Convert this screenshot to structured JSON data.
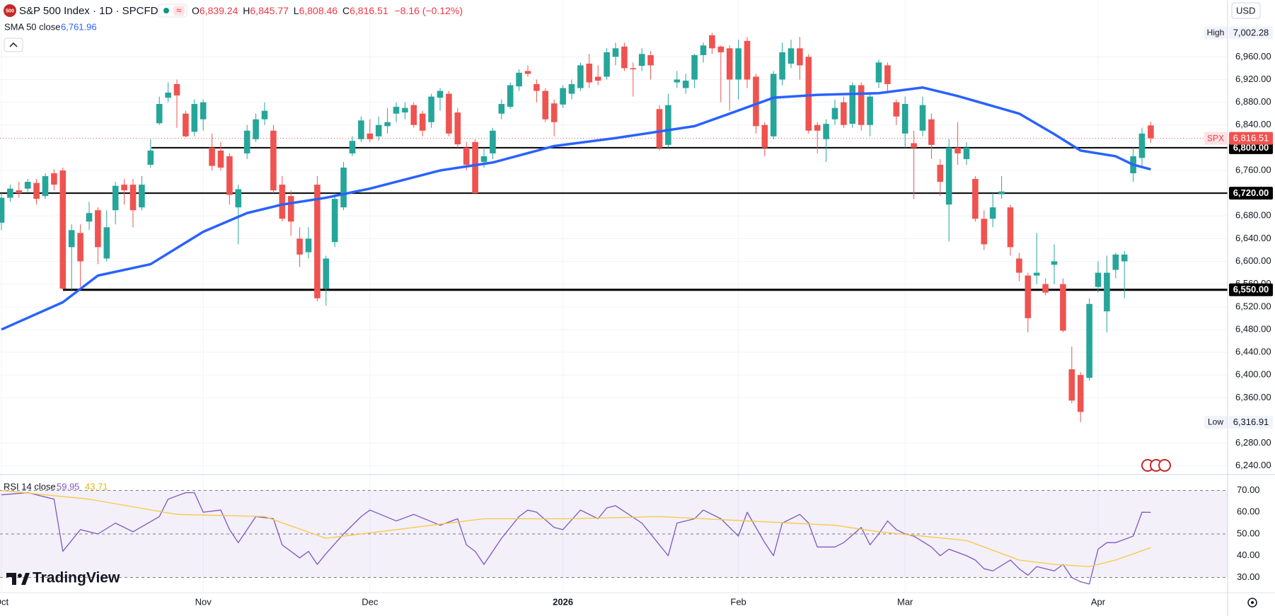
{
  "header": {
    "symbol_badge": "500",
    "title": "S&P 500 Index · 1D · SPCFD",
    "badge": "≈",
    "ohlc": [
      {
        "key": "O",
        "value": "6,839.24"
      },
      {
        "key": "H",
        "value": "6,845.77"
      },
      {
        "key": "L",
        "value": "6,808.46"
      },
      {
        "key": "C",
        "value": "6,816.51"
      }
    ],
    "change": "−8.16 (−0.12%)"
  },
  "currency": "USD",
  "branding": "TradingView",
  "chart_data": [
    {
      "type": "candlestick",
      "categories": [
        "Oct",
        null,
        null,
        null,
        null,
        null,
        null,
        null,
        null,
        null,
        null,
        null,
        null,
        null,
        null,
        null,
        null,
        null,
        null,
        null,
        null,
        null,
        null,
        "Nov",
        null,
        null,
        null,
        null,
        null,
        null,
        null,
        null,
        null,
        null,
        null,
        null,
        null,
        null,
        null,
        null,
        null,
        null,
        "Dec",
        null,
        null,
        null,
        null,
        null,
        null,
        null,
        null,
        null,
        null,
        null,
        null,
        null,
        null,
        null,
        null,
        null,
        null,
        null,
        null,
        null,
        "2026",
        null,
        null,
        null,
        null,
        null,
        null,
        null,
        null,
        null,
        null,
        null,
        null,
        null,
        null,
        null,
        null,
        null,
        null,
        null,
        "Feb",
        null,
        null,
        null,
        null,
        null,
        null,
        null,
        null,
        null,
        null,
        null,
        null,
        null,
        null,
        null,
        null,
        null,
        null,
        "Mar",
        null,
        null,
        null,
        null,
        null,
        null,
        null,
        null,
        null,
        null,
        null,
        null,
        null,
        null,
        null,
        null,
        null,
        null,
        null,
        null,
        null,
        "Apr",
        null,
        null,
        null,
        null,
        null,
        null
      ],
      "open": [
        6668,
        6712,
        6725,
        6728,
        6738,
        6715,
        6755,
        6760,
        6625,
        6650,
        6670,
        6690,
        6605,
        6690,
        6735,
        6735,
        6695,
        6770,
        6843,
        6888,
        6912,
        6860,
        6828,
        6850,
        6800,
        6795,
        6785,
        6695,
        6790,
        6815,
        6850,
        6830,
        6735,
        6715,
        6640,
        6616,
        6735,
        6552,
        6634,
        6695,
        6790,
        6815,
        6825,
        6820,
        6838,
        6860,
        6862,
        6875,
        6860,
        6845,
        6888,
        6895,
        6862,
        6800,
        6810,
        6775,
        6790,
        6860,
        6872,
        6908,
        6935,
        6912,
        6900,
        6878,
        6876,
        6895,
        6905,
        6948,
        6925,
        6925,
        6960,
        6978,
        6940,
        6944,
        6963,
        6868,
        6805,
        6915,
        6905,
        6920,
        6963,
        6998,
        6978,
        6975,
        6920,
        6988,
        6925,
        6840,
        6820,
        6920,
        6948,
        6975,
        6960,
        6840,
        6815,
        6850,
        6880,
        6842,
        6910,
        6840,
        6915,
        6945,
        6880,
        6825,
        6808,
        6830,
        6850,
        6770,
        6700,
        6800,
        6780,
        6745,
        6675,
        6675,
        6718,
        6695,
        6605,
        6575,
        6575,
        6560,
        6594,
        6560,
        6410,
        6400,
        6395,
        6555,
        6512,
        6585,
        6600,
        6755,
        6782,
        6839.24
      ],
      "high": [
        6720,
        6735,
        6740,
        6745,
        6745,
        6755,
        6762,
        6765,
        6665,
        6665,
        6705,
        6695,
        6690,
        6740,
        6745,
        6745,
        6750,
        6815,
        6890,
        6915,
        6920,
        6865,
        6885,
        6885,
        6825,
        6810,
        6790,
        6735,
        6840,
        6860,
        6880,
        6840,
        6750,
        6725,
        6660,
        6660,
        6750,
        6610,
        6720,
        6775,
        6820,
        6855,
        6850,
        6855,
        6870,
        6880,
        6880,
        6880,
        6865,
        6895,
        6905,
        6900,
        6870,
        6810,
        6815,
        6800,
        6835,
        6885,
        6915,
        6938,
        6945,
        6920,
        6905,
        6885,
        6910,
        6920,
        6950,
        6965,
        6945,
        6975,
        6985,
        6985,
        6950,
        6975,
        6970,
        6875,
        6895,
        6935,
        6930,
        6965,
        6985,
        7002.28,
        6980,
        6980,
        6990,
        6995,
        6930,
        6845,
        6935,
        6985,
        6990,
        6995,
        6965,
        6845,
        6850,
        6885,
        6890,
        6915,
        6915,
        6895,
        6955,
        6950,
        6885,
        6890,
        6830,
        6890,
        6860,
        6780,
        6815,
        6845,
        6810,
        6750,
        6690,
        6720,
        6750,
        6700,
        6615,
        6580,
        6650,
        6570,
        6630,
        6570,
        6450,
        6405,
        6535,
        6600,
        6610,
        6615,
        6618,
        6800,
        6835,
        6845.77
      ],
      "low": [
        6655,
        6705,
        6712,
        6722,
        6700,
        6710,
        6725,
        6550,
        6550,
        6555,
        6655,
        6595,
        6600,
        6665,
        6700,
        6660,
        6690,
        6765,
        6840,
        6880,
        6835,
        6818,
        6820,
        6830,
        6760,
        6760,
        6700,
        6630,
        6780,
        6810,
        6840,
        6720,
        6670,
        6645,
        6590,
        6605,
        6530,
        6522,
        6625,
        6690,
        6785,
        6810,
        6810,
        6812,
        6825,
        6845,
        6850,
        6835,
        6820,
        6835,
        6865,
        6820,
        6800,
        6760,
        6718,
        6765,
        6780,
        6850,
        6868,
        6900,
        6925,
        6880,
        6845,
        6820,
        6870,
        6885,
        6900,
        6905,
        6910,
        6920,
        6945,
        6935,
        6890,
        6935,
        6920,
        6795,
        6800,
        6905,
        6895,
        6905,
        6950,
        6965,
        6880,
        6865,
        6885,
        6905,
        6825,
        6785,
        6815,
        6910,
        6940,
        6920,
        6825,
        6790,
        6775,
        6840,
        6835,
        6835,
        6830,
        6820,
        6905,
        6900,
        6840,
        6800,
        6710,
        6820,
        6780,
        6715,
        6635,
        6770,
        6770,
        6670,
        6620,
        6660,
        6710,
        6610,
        6565,
        6475,
        6560,
        6540,
        6560,
        6475,
        6350,
        6316.91,
        6390,
        6545,
        6475,
        6570,
        6535,
        6740,
        6765,
        6808.46
      ],
      "close": [
        6712,
        6728,
        6720,
        6740,
        6710,
        6750,
        6735,
        6552,
        6655,
        6600,
        6685,
        6625,
        6660,
        6733,
        6725,
        6690,
        6735,
        6795,
        6877,
        6897,
        6892,
        6820,
        6877,
        6880,
        6768,
        6765,
        6717,
        6727,
        6830,
        6850,
        6865,
        6725,
        6675,
        6670,
        6612,
        6640,
        6535,
        6605,
        6710,
        6765,
        6812,
        6848,
        6815,
        6840,
        6845,
        6872,
        6870,
        6840,
        6830,
        6890,
        6900,
        6825,
        6806,
        6770,
        6720,
        6785,
        6830,
        6877,
        6910,
        6932,
        6930,
        6900,
        6850,
        6845,
        6905,
        6912,
        6945,
        6915,
        6918,
        6968,
        6975,
        6940,
        6938,
        6965,
        6945,
        6800,
        6875,
        6920,
        6918,
        6963,
        6980,
        6975,
        6968,
        6920,
        6975,
        6920,
        6838,
        6800,
        6930,
        6968,
        6975,
        6945,
        6830,
        6830,
        6842,
        6870,
        6840,
        6910,
        6840,
        6890,
        6950,
        6912,
        6855,
        6877,
        6800,
        6875,
        6805,
        6740,
        6800,
        6790,
        6800,
        6675,
        6630,
        6695,
        6723,
        6625,
        6580,
        6500,
        6580,
        6545,
        6600,
        6478,
        6355,
        6335,
        6525,
        6580,
        6580,
        6612,
        6612,
        6785,
        6825,
        6816.51
      ],
      "up_color": "#26a69a",
      "down_color": "#ef5350",
      "ylim": [
        6226,
        7060
      ],
      "yticks": [
        {
          "value": 6960,
          "label": "6,960.00"
        },
        {
          "value": 6920,
          "label": "6,920.00"
        },
        {
          "value": 6880,
          "label": "6,880.00"
        },
        {
          "value": 6840,
          "label": "6,840.00"
        },
        {
          "value": 6760,
          "label": "6,760.00"
        },
        {
          "value": 6680,
          "label": "6,680.00"
        },
        {
          "value": 6640,
          "label": "6,640.00"
        },
        {
          "value": 6600,
          "label": "6,600.00"
        },
        {
          "value": 6560,
          "label": "6,560.00"
        },
        {
          "value": 6520,
          "label": "6,520.00"
        },
        {
          "value": 6480,
          "label": "6,480.00"
        },
        {
          "value": 6440,
          "label": "6,440.00"
        },
        {
          "value": 6400,
          "label": "6,400.00"
        },
        {
          "value": 6360,
          "label": "6,360.00"
        },
        {
          "value": 6280,
          "label": "6,280.00"
        },
        {
          "value": 6240,
          "label": "6,240.00"
        }
      ],
      "grid": true,
      "overlays": [
        {
          "name": "SMA 50 close",
          "value_label": "6,761.96",
          "color": "#2962ff",
          "x": [
            0,
            7,
            11,
            17,
            23,
            28,
            32,
            37,
            42,
            50,
            56,
            63,
            70,
            79,
            83,
            88,
            93,
            100,
            105,
            109,
            116,
            120,
            123,
            127,
            129,
            131
          ],
          "values": [
            6480,
            6528,
            6575,
            6595,
            6652,
            6685,
            6700,
            6712,
            6728,
            6760,
            6774,
            6803,
            6817,
            6838,
            6860,
            6888,
            6893,
            6896,
            6906,
            6891,
            6860,
            6824,
            6795,
            6785,
            6770,
            6761.96
          ]
        }
      ],
      "levels": [
        {
          "value": 6800,
          "label": "6,800.00"
        },
        {
          "value": 6720,
          "label": "6,720.00"
        },
        {
          "value": 6550,
          "label": "6,550.00"
        }
      ],
      "high_marker": {
        "label": "High",
        "value": 7002.28,
        "value_label": "7,002.28"
      },
      "low_marker": {
        "label": "Low",
        "value": 6316.91,
        "value_label": "6,316.91"
      },
      "last_price": {
        "symbol": "SPX",
        "value": 6816.51,
        "value_label": "6,816.51",
        "color": "#ef5350"
      }
    },
    {
      "type": "line",
      "title": "RSI 14 close",
      "series": [
        {
          "color": "#7e57c2",
          "value_label": "59.95",
          "x": [
            0,
            3,
            6,
            7,
            9,
            11,
            13,
            15,
            18,
            19,
            21,
            22,
            23,
            25,
            26,
            27,
            29,
            31,
            32,
            34,
            35,
            36,
            37,
            39,
            41,
            42,
            45,
            47,
            50,
            52,
            53,
            54,
            55,
            57,
            59,
            60,
            61,
            63,
            64,
            66,
            68,
            69,
            70,
            73,
            76,
            77,
            79,
            80,
            82,
            84,
            85,
            87,
            88,
            89,
            91,
            92,
            93,
            95,
            96,
            98,
            99,
            100,
            101,
            102,
            103,
            104,
            106,
            107,
            108,
            110,
            111,
            112,
            113,
            115,
            116,
            117,
            118,
            120,
            121,
            122,
            123,
            124,
            125,
            126,
            127,
            129,
            130,
            131
          ],
          "values": [
            68,
            69,
            66,
            42,
            52,
            50,
            55,
            51,
            58,
            66,
            69,
            69,
            60,
            61,
            52,
            46,
            58,
            57,
            45,
            39,
            42,
            36,
            41,
            50,
            58,
            61,
            56,
            59,
            54,
            57,
            45,
            42,
            36,
            48,
            58,
            61,
            60,
            53,
            52,
            61,
            57,
            62,
            63,
            55,
            40,
            55,
            57,
            61,
            57,
            49,
            60,
            46,
            40,
            55,
            59,
            55,
            44,
            44,
            46,
            53,
            45,
            50,
            56,
            52,
            50,
            49,
            44,
            40,
            43,
            40,
            38,
            34,
            33,
            38,
            34,
            31,
            35,
            33,
            36,
            30,
            28,
            27,
            43,
            46,
            46,
            49,
            60,
            59.95
          ]
        },
        {
          "color": "#f7c843",
          "value_label": "43.71",
          "x": [
            0,
            10,
            20,
            30,
            37,
            45,
            55,
            65,
            75,
            85,
            90,
            95,
            100,
            110,
            116,
            120,
            124,
            127,
            131
          ],
          "values": [
            70,
            66,
            59,
            58,
            48,
            52,
            57,
            57,
            58,
            56,
            55,
            54,
            51,
            47,
            38,
            36,
            35,
            38,
            43.71
          ]
        }
      ],
      "ylim": [
        23,
        77
      ],
      "yticks": [
        {
          "value": 70,
          "label": "70.00"
        },
        {
          "value": 60,
          "label": "60.00"
        },
        {
          "value": 50,
          "label": "50.00"
        },
        {
          "value": 40,
          "label": "40.00"
        },
        {
          "value": 30,
          "label": "30.00"
        }
      ],
      "bands": {
        "upper": 70,
        "middle": 50,
        "lower": 30
      }
    }
  ]
}
